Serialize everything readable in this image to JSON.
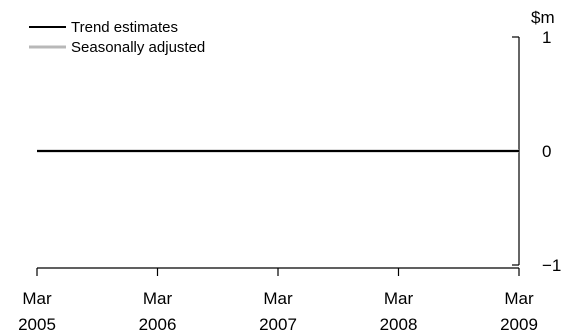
{
  "chart_data": {
    "type": "line",
    "title": "",
    "xlabel": "",
    "ylabel": "$m",
    "x": [
      "Mar 2005",
      "Mar 2006",
      "Mar 2007",
      "Mar 2008",
      "Mar 2009"
    ],
    "x_tick_labels": [
      {
        "month": "Mar",
        "year": "2005"
      },
      {
        "month": "Mar",
        "year": "2006"
      },
      {
        "month": "Mar",
        "year": "2007"
      },
      {
        "month": "Mar",
        "year": "2008"
      },
      {
        "month": "Mar",
        "year": "2009"
      }
    ],
    "ylim": [
      -1,
      1
    ],
    "y_ticks": [
      -1,
      0,
      1
    ],
    "y_tick_labels": [
      "−1",
      "0",
      "1"
    ],
    "y_axis_position": "right",
    "grid": false,
    "legend_position": "top-left",
    "series": [
      {
        "name": "Trend estimates",
        "color": "#000000",
        "values": [
          0,
          0,
          0,
          0,
          0
        ]
      },
      {
        "name": "Seasonally adjusted",
        "color": "#b8b8b8",
        "values": [
          0,
          0,
          0,
          0,
          0
        ]
      }
    ]
  }
}
